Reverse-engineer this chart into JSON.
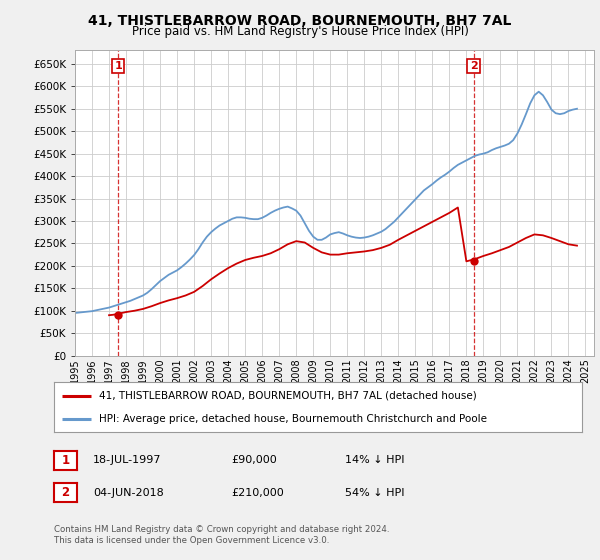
{
  "title": "41, THISTLEBARROW ROAD, BOURNEMOUTH, BH7 7AL",
  "subtitle": "Price paid vs. HM Land Registry's House Price Index (HPI)",
  "legend_line1": "41, THISTLEBARROW ROAD, BOURNEMOUTH, BH7 7AL (detached house)",
  "legend_line2": "HPI: Average price, detached house, Bournemouth Christchurch and Poole",
  "annotation1_label": "1",
  "annotation1_date": "18-JUL-1997",
  "annotation1_price": "£90,000",
  "annotation1_pct": "14% ↓ HPI",
  "annotation2_label": "2",
  "annotation2_date": "04-JUN-2018",
  "annotation2_price": "£210,000",
  "annotation2_pct": "54% ↓ HPI",
  "footer": "Contains HM Land Registry data © Crown copyright and database right 2024.\nThis data is licensed under the Open Government Licence v3.0.",
  "hpi_color": "#6699cc",
  "price_color": "#cc0000",
  "marker_color": "#cc0000",
  "ylim": [
    0,
    680000
  ],
  "xlim_start": 1995.0,
  "xlim_end": 2025.5,
  "hpi_x": [
    1995.0,
    1995.25,
    1995.5,
    1995.75,
    1996.0,
    1996.25,
    1996.5,
    1996.75,
    1997.0,
    1997.25,
    1997.5,
    1997.75,
    1998.0,
    1998.25,
    1998.5,
    1998.75,
    1999.0,
    1999.25,
    1999.5,
    1999.75,
    2000.0,
    2000.25,
    2000.5,
    2000.75,
    2001.0,
    2001.25,
    2001.5,
    2001.75,
    2002.0,
    2002.25,
    2002.5,
    2002.75,
    2003.0,
    2003.25,
    2003.5,
    2003.75,
    2004.0,
    2004.25,
    2004.5,
    2004.75,
    2005.0,
    2005.25,
    2005.5,
    2005.75,
    2006.0,
    2006.25,
    2006.5,
    2006.75,
    2007.0,
    2007.25,
    2007.5,
    2007.75,
    2008.0,
    2008.25,
    2008.5,
    2008.75,
    2009.0,
    2009.25,
    2009.5,
    2009.75,
    2010.0,
    2010.25,
    2010.5,
    2010.75,
    2011.0,
    2011.25,
    2011.5,
    2011.75,
    2012.0,
    2012.25,
    2012.5,
    2012.75,
    2013.0,
    2013.25,
    2013.5,
    2013.75,
    2014.0,
    2014.25,
    2014.5,
    2014.75,
    2015.0,
    2015.25,
    2015.5,
    2015.75,
    2016.0,
    2016.25,
    2016.5,
    2016.75,
    2017.0,
    2017.25,
    2017.5,
    2017.75,
    2018.0,
    2018.25,
    2018.5,
    2018.75,
    2019.0,
    2019.25,
    2019.5,
    2019.75,
    2020.0,
    2020.25,
    2020.5,
    2020.75,
    2021.0,
    2021.25,
    2021.5,
    2021.75,
    2022.0,
    2022.25,
    2022.5,
    2022.75,
    2023.0,
    2023.25,
    2023.5,
    2023.75,
    2024.0,
    2024.25,
    2024.5
  ],
  "hpi_y": [
    95000,
    96000,
    97000,
    98000,
    99000,
    101000,
    103000,
    105000,
    107000,
    110000,
    113000,
    116000,
    119000,
    122000,
    126000,
    130000,
    134000,
    140000,
    148000,
    157000,
    166000,
    173000,
    180000,
    185000,
    190000,
    197000,
    205000,
    214000,
    224000,
    237000,
    252000,
    265000,
    275000,
    283000,
    290000,
    295000,
    300000,
    305000,
    308000,
    308000,
    307000,
    305000,
    304000,
    304000,
    307000,
    312000,
    318000,
    323000,
    327000,
    330000,
    332000,
    328000,
    323000,
    312000,
    295000,
    278000,
    265000,
    258000,
    258000,
    263000,
    270000,
    273000,
    275000,
    272000,
    268000,
    265000,
    263000,
    262000,
    263000,
    265000,
    268000,
    272000,
    276000,
    282000,
    290000,
    298000,
    308000,
    318000,
    328000,
    338000,
    348000,
    358000,
    368000,
    375000,
    382000,
    390000,
    397000,
    403000,
    410000,
    418000,
    425000,
    430000,
    435000,
    440000,
    445000,
    448000,
    450000,
    453000,
    458000,
    462000,
    465000,
    468000,
    472000,
    480000,
    495000,
    515000,
    538000,
    562000,
    580000,
    588000,
    580000,
    565000,
    548000,
    540000,
    538000,
    540000,
    545000,
    548000,
    550000
  ],
  "price_x": [
    1997.0,
    1997.25,
    1997.5,
    1997.75,
    1998.0,
    1998.5,
    1999.0,
    1999.5,
    2000.0,
    2000.5,
    2001.0,
    2001.5,
    2002.0,
    2002.5,
    2003.0,
    2003.5,
    2004.0,
    2004.5,
    2005.0,
    2005.5,
    2006.0,
    2006.5,
    2007.0,
    2007.5,
    2008.0,
    2008.5,
    2009.0,
    2009.5,
    2010.0,
    2010.5,
    2011.0,
    2011.5,
    2012.0,
    2012.5,
    2013.0,
    2013.5,
    2014.0,
    2014.5,
    2015.0,
    2015.5,
    2016.0,
    2016.5,
    2017.0,
    2017.5,
    2018.0,
    2018.5,
    2019.0,
    2019.5,
    2020.0,
    2020.5,
    2021.0,
    2021.5,
    2022.0,
    2022.5,
    2023.0,
    2023.5,
    2024.0,
    2024.5
  ],
  "price_y": [
    90000,
    91000,
    93000,
    95000,
    97000,
    100000,
    104000,
    110000,
    117000,
    123000,
    128000,
    134000,
    142000,
    155000,
    170000,
    183000,
    195000,
    205000,
    213000,
    218000,
    222000,
    228000,
    237000,
    248000,
    255000,
    252000,
    240000,
    230000,
    225000,
    225000,
    228000,
    230000,
    232000,
    235000,
    240000,
    247000,
    258000,
    268000,
    278000,
    288000,
    298000,
    308000,
    318000,
    330000,
    210000,
    215000,
    222000,
    228000,
    235000,
    242000,
    252000,
    262000,
    270000,
    268000,
    262000,
    255000,
    248000,
    245000
  ],
  "point1_x": 1997.54,
  "point1_y": 90000,
  "point2_x": 2018.42,
  "point2_y": 210000,
  "yticks": [
    0,
    50000,
    100000,
    150000,
    200000,
    250000,
    300000,
    350000,
    400000,
    450000,
    500000,
    550000,
    600000,
    650000
  ],
  "xticks": [
    1995,
    1996,
    1997,
    1998,
    1999,
    2000,
    2001,
    2002,
    2003,
    2004,
    2005,
    2006,
    2007,
    2008,
    2009,
    2010,
    2011,
    2012,
    2013,
    2014,
    2015,
    2016,
    2017,
    2018,
    2019,
    2020,
    2021,
    2022,
    2023,
    2024,
    2025
  ],
  "bg_color": "#f0f0f0",
  "plot_bg_color": "#ffffff",
  "grid_color": "#cccccc"
}
